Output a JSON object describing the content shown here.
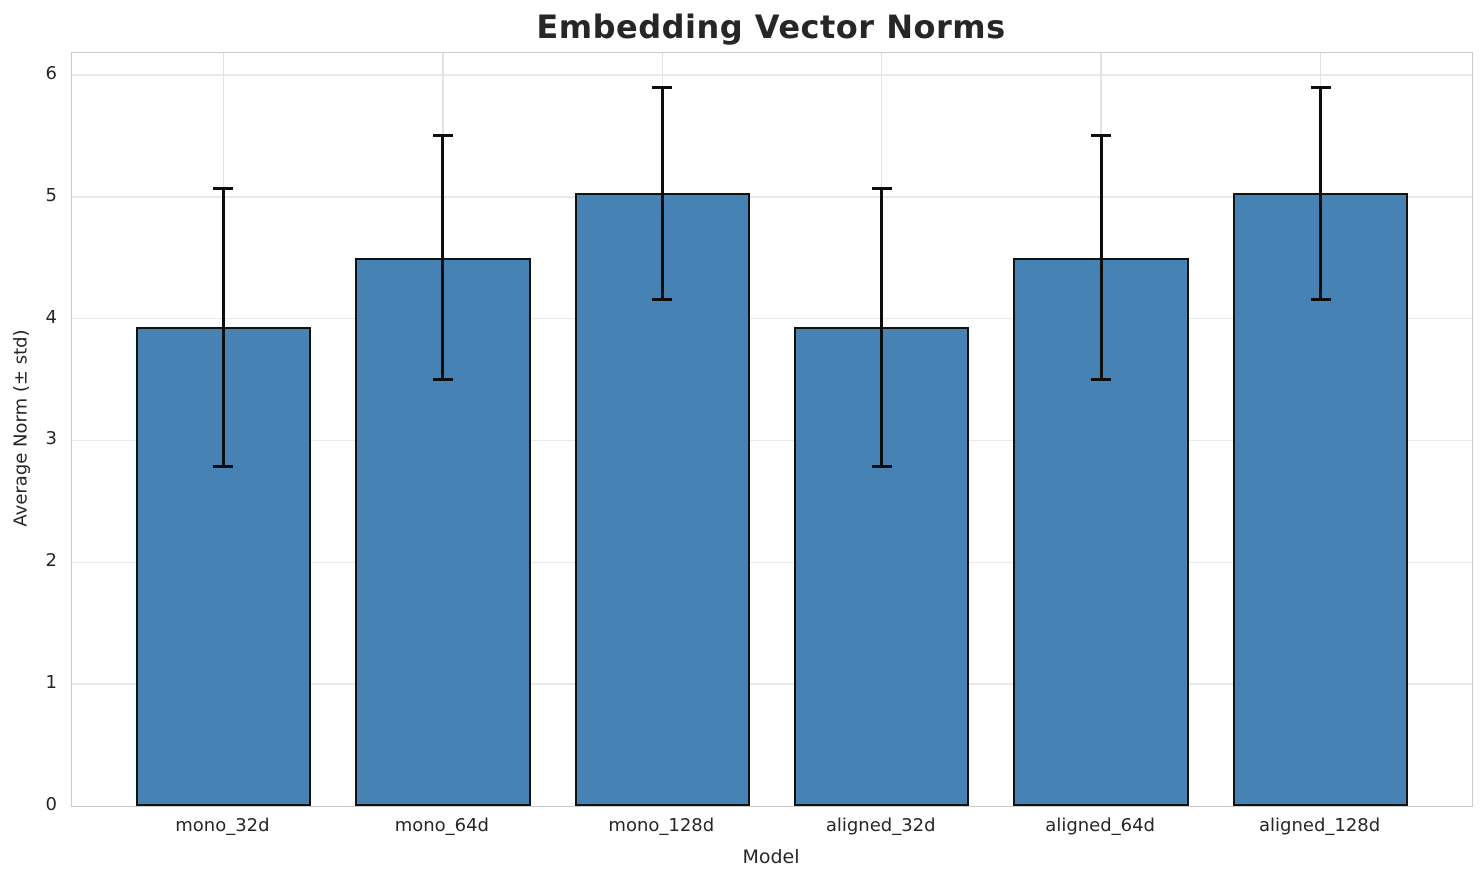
{
  "chart_data": {
    "type": "bar",
    "title": "Embedding Vector Norms",
    "xlabel": "Model",
    "ylabel": "Average Norm (± std)",
    "categories": [
      "mono_32d",
      "mono_64d",
      "mono_128d",
      "aligned_32d",
      "aligned_64d",
      "aligned_128d"
    ],
    "values": [
      3.93,
      4.5,
      5.03,
      3.93,
      4.5,
      5.03
    ],
    "errors": [
      1.14,
      1.0,
      0.87,
      1.14,
      1.0,
      0.87
    ],
    "yticks": [
      0,
      1,
      2,
      3,
      4,
      5,
      6
    ],
    "ylim": [
      0,
      6.18
    ],
    "xlim": [
      -0.69,
      5.69
    ],
    "bar_width_data_units": 0.8,
    "grid": true,
    "legend": "none",
    "colors": {
      "bar_fill": "#4682b4",
      "bar_edge": "#111111",
      "error_bar": "#0d0d0d",
      "gridline": "#e9e9e9",
      "spine": "#cccccc",
      "text": "#262626"
    }
  }
}
